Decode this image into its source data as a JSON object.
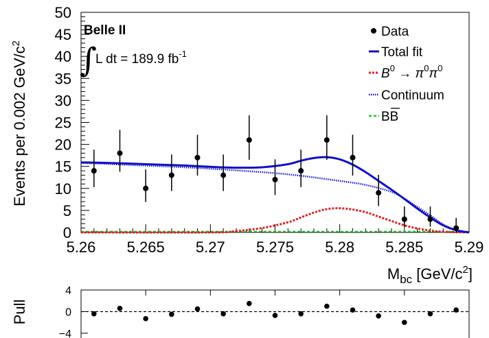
{
  "chart_data": [
    {
      "type": "scatter",
      "experiment_label": "Belle II",
      "luminosity_label": "L dt = 189.9 fb",
      "luminosity_exponent": "-1",
      "ylabel": "Events per 0.002 GeV/c",
      "ylabel_exponent": "2",
      "xlabel_main": "M",
      "xlabel_sub": "bc",
      "xlabel_unit": "[GeV/c",
      "xlabel_unit_exp": "2",
      "xlabel_close": "]",
      "xlim": [
        5.26,
        5.29
      ],
      "ylim": [
        0,
        50
      ],
      "x_ticks": [
        "5.26",
        "5.265",
        "5.27",
        "5.275",
        "5.28",
        "5.285",
        "5.29"
      ],
      "y_ticks": [
        "0",
        "5",
        "10",
        "15",
        "20",
        "25",
        "30",
        "35",
        "40",
        "45",
        "50"
      ],
      "legend": {
        "placement": "top-right",
        "entries": {
          "data": "Data",
          "total": "Total fit",
          "signal_prefix": "B",
          "signal_exp": "0",
          "signal_arrow": "→",
          "signal_suffix": "π",
          "signal_suffix_exp": "0",
          "signal_suffix2": "π",
          "signal_suffix2_exp": "0",
          "continuum": "Continuum",
          "bbbar": "BB"
        }
      },
      "colors": {
        "data": "#000000",
        "total": "#1010c8",
        "signal": "#e02020",
        "continuum": "#1a1ad0",
        "bbbar": "#18c818"
      },
      "series": {
        "data": {
          "x": [
            5.261,
            5.263,
            5.265,
            5.267,
            5.269,
            5.271,
            5.273,
            5.275,
            5.277,
            5.279,
            5.281,
            5.283,
            5.285,
            5.287,
            5.289
          ],
          "y": [
            14,
            18,
            10,
            13,
            17,
            13,
            21,
            12,
            14,
            21,
            17,
            9,
            3,
            3,
            1
          ],
          "err_low": [
            3.7,
            4.2,
            3.1,
            3.6,
            4.1,
            3.6,
            4.5,
            3.5,
            3.7,
            4.5,
            4.1,
            3.0,
            1.7,
            1.7,
            1.0
          ],
          "err_high": [
            4.8,
            5.3,
            4.3,
            4.7,
            5.2,
            4.7,
            5.6,
            4.6,
            4.8,
            5.6,
            5.2,
            4.1,
            2.9,
            2.9,
            2.3
          ]
        },
        "total": {
          "x": [
            5.26,
            5.262,
            5.264,
            5.266,
            5.268,
            5.27,
            5.272,
            5.274,
            5.276,
            5.277,
            5.278,
            5.279,
            5.28,
            5.281,
            5.282,
            5.283,
            5.284,
            5.285,
            5.286,
            5.287,
            5.288,
            5.289,
            5.29
          ],
          "y": [
            15.9,
            15.8,
            15.6,
            15.4,
            15.2,
            14.9,
            14.7,
            14.8,
            15.5,
            16.3,
            16.9,
            17.1,
            16.6,
            15.4,
            13.7,
            11.7,
            9.7,
            7.6,
            5.4,
            3.4,
            1.6,
            0.5,
            0
          ]
        },
        "signal": {
          "x": [
            5.26,
            5.27,
            5.272,
            5.274,
            5.276,
            5.277,
            5.278,
            5.279,
            5.28,
            5.281,
            5.282,
            5.283,
            5.284,
            5.285,
            5.286,
            5.287,
            5.288,
            5.289,
            5.29
          ],
          "y": [
            0,
            0,
            0.3,
            1.0,
            2.3,
            3.4,
            4.5,
            5.3,
            5.5,
            5.2,
            4.6,
            3.6,
            2.6,
            1.6,
            0.9,
            0.4,
            0.15,
            0.05,
            0
          ]
        },
        "continuum": {
          "x": [
            5.26,
            5.264,
            5.268,
            5.272,
            5.276,
            5.28,
            5.282,
            5.284,
            5.285,
            5.286,
            5.287,
            5.288,
            5.289,
            5.29
          ],
          "y": [
            15.8,
            15.3,
            14.8,
            14.1,
            13.2,
            11.7,
            10.8,
            9.2,
            7.7,
            5.8,
            3.9,
            1.8,
            0.6,
            0
          ]
        },
        "bbbar": {
          "x": [
            5.26,
            5.29
          ],
          "y": [
            0.2,
            0.2
          ]
        }
      }
    },
    {
      "type": "scatter",
      "ylabel": "Pull",
      "ylim": [
        -4,
        4
      ],
      "y_ticks": [
        "4",
        "0",
        "−4"
      ],
      "zero_line": true,
      "series": {
        "pull": {
          "x": [
            5.261,
            5.263,
            5.265,
            5.267,
            5.269,
            5.271,
            5.273,
            5.275,
            5.277,
            5.279,
            5.281,
            5.283,
            5.285,
            5.287,
            5.289
          ],
          "y": [
            -0.4,
            0.6,
            -1.3,
            -0.5,
            0.5,
            -0.4,
            1.5,
            -0.7,
            -0.4,
            1.0,
            0.3,
            -0.8,
            -2.0,
            -0.4,
            0.3
          ]
        }
      }
    }
  ]
}
